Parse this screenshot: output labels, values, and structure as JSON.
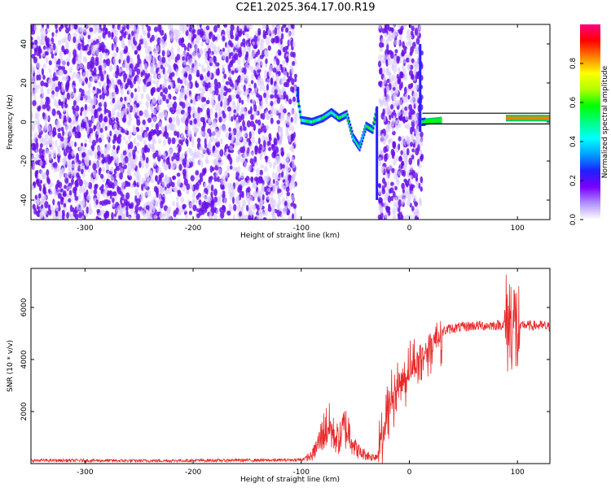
{
  "title": "C2E1.2025.364.17.00.R19",
  "colors": {
    "snr_line": "#e82a2a",
    "scatter_low": "#d8c8ff",
    "scatter_high": "#6a10e8",
    "colormap": [
      "#ffffff",
      "#b090ff",
      "#7a00ff",
      "#2020ff",
      "#00a0ff",
      "#00ffff",
      "#00ff80",
      "#00ff00",
      "#b0ff00",
      "#ffff00",
      "#ff8000",
      "#ff0000",
      "#ff0080"
    ]
  },
  "chart_data": [
    {
      "type": "heatmap",
      "title": "",
      "xlabel": "Height of straight line (km)",
      "ylabel": "Frequency (Hz)",
      "xlim": [
        -350,
        130
      ],
      "ylim": [
        -50,
        50
      ],
      "xticks": [
        "-300",
        "-200",
        "-100",
        "0",
        "100"
      ],
      "yticks": [
        "-40",
        "-20",
        "0",
        "20",
        "40"
      ],
      "colorbar": {
        "label": "Normalized spectral amplitude",
        "range": [
          0,
          1
        ],
        "ticks": [
          "0.0",
          "0.2",
          "0.4",
          "0.6",
          "0.8"
        ]
      },
      "noise_regions": [
        {
          "x": [
            -350,
            -105
          ],
          "y": [
            -50,
            50
          ]
        },
        {
          "x": [
            -28,
            12
          ],
          "y": [
            -50,
            50
          ]
        }
      ],
      "signal_track": [
        {
          "x": -104,
          "y": 15
        },
        {
          "x": -100,
          "y": 1
        },
        {
          "x": -90,
          "y": 0
        },
        {
          "x": -80,
          "y": 2
        },
        {
          "x": -72,
          "y": 5
        },
        {
          "x": -65,
          "y": 2
        },
        {
          "x": -58,
          "y": 4
        },
        {
          "x": -52,
          "y": -8
        },
        {
          "x": -46,
          "y": -13
        },
        {
          "x": -40,
          "y": -2
        },
        {
          "x": -34,
          "y": -4
        },
        {
          "x": -30,
          "y": 7
        },
        {
          "x": 12,
          "y": 0
        },
        {
          "x": 30,
          "y": 1
        },
        {
          "x": 60,
          "y": 1
        },
        {
          "x": 90,
          "y": 2
        },
        {
          "x": 110,
          "y": 2
        },
        {
          "x": 130,
          "y": 2
        }
      ]
    },
    {
      "type": "line",
      "title": "",
      "xlabel": "Height of straight line (km)",
      "ylabel": "SNR (10 * v/v)",
      "xlim": [
        -350,
        130
      ],
      "ylim": [
        0,
        7500
      ],
      "xticks": [
        "-300",
        "-200",
        "-100",
        "0",
        "100"
      ],
      "yticks": [
        "2000",
        "4000",
        "6000"
      ],
      "series": [
        {
          "x": [
            -350,
            -300,
            -250,
            -200,
            -150,
            -120,
            -100,
            -90,
            -85,
            -80,
            -75,
            -70,
            -65,
            -60,
            -55,
            -50,
            -45,
            -40,
            -35,
            -30,
            -25,
            -20,
            -15,
            -10,
            -5,
            0,
            5,
            10,
            15,
            20,
            25,
            30,
            35,
            40,
            50,
            60,
            70,
            80,
            90,
            95,
            100,
            105,
            110,
            120,
            130
          ],
          "values": [
            120,
            120,
            110,
            120,
            130,
            130,
            150,
            300,
            700,
            1200,
            1500,
            1100,
            900,
            1400,
            1200,
            600,
            400,
            350,
            250,
            300,
            1000,
            2000,
            2600,
            3000,
            3300,
            3600,
            3800,
            4000,
            4300,
            4600,
            4900,
            5050,
            5150,
            5200,
            5250,
            5300,
            5300,
            5320,
            5350,
            5600,
            5000,
            5350,
            5300,
            5300,
            5250
          ]
        }
      ]
    }
  ]
}
